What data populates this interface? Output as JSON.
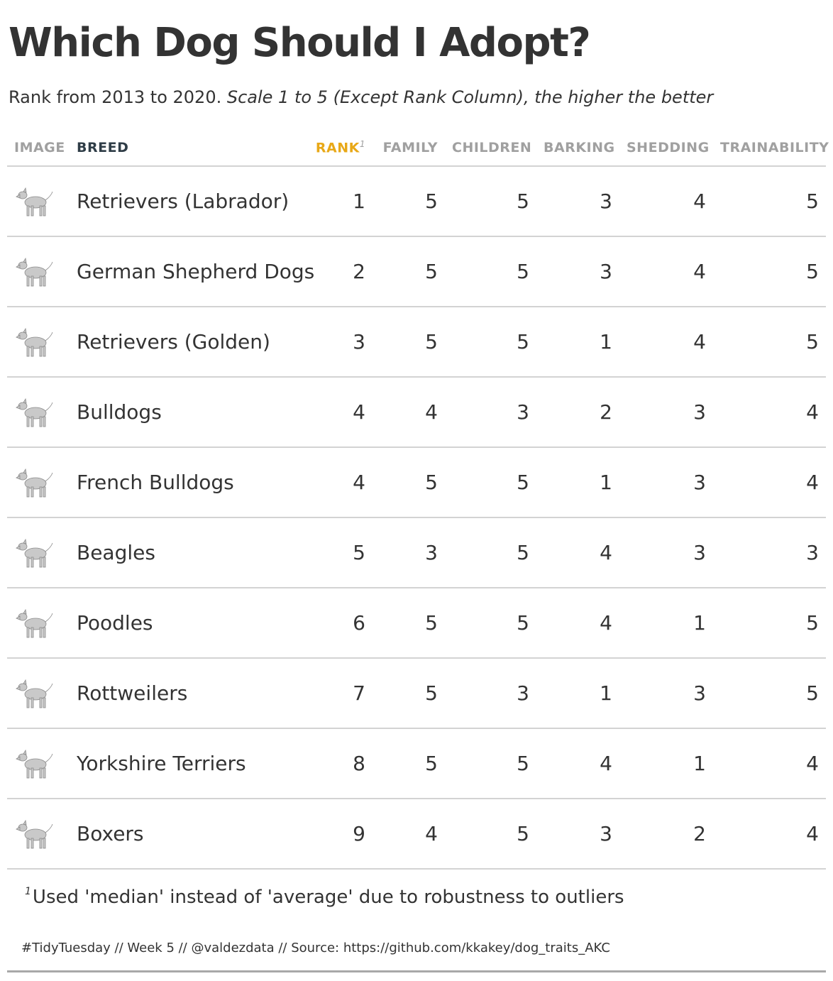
{
  "title": "Which Dog Should I Adopt?",
  "subtitle": {
    "plain": "Rank from 2013 to 2020.",
    "italic": "Scale 1 to 5 (Except Rank Column), the higher the better"
  },
  "colors": {
    "rank_header": "#e8a817",
    "breed_header": "#2f3d47",
    "muted_header": "#a0a0a0",
    "text": "#333333",
    "rule": "#d3d3d3"
  },
  "chart_data": {
    "type": "table",
    "columns": [
      "IMAGE",
      "BREED",
      "RANK",
      "FAMILY",
      "CHILDREN",
      "BARKING",
      "SHEDDING",
      "TRAINABILITY"
    ],
    "rank_footnote_marker": "1",
    "rows": [
      {
        "image": "labrador-retriever-icon",
        "breed": "Retrievers (Labrador)",
        "rank": 1,
        "family": 5,
        "children": 5,
        "barking": 3,
        "shedding": 4,
        "trainability": 5
      },
      {
        "image": "german-shepherd-icon",
        "breed": "German Shepherd Dogs",
        "rank": 2,
        "family": 5,
        "children": 5,
        "barking": 3,
        "shedding": 4,
        "trainability": 5
      },
      {
        "image": "golden-retriever-icon",
        "breed": "Retrievers (Golden)",
        "rank": 3,
        "family": 5,
        "children": 5,
        "barking": 1,
        "shedding": 4,
        "trainability": 5
      },
      {
        "image": "bulldog-icon",
        "breed": "Bulldogs",
        "rank": 4,
        "family": 4,
        "children": 3,
        "barking": 2,
        "shedding": 3,
        "trainability": 4
      },
      {
        "image": "french-bulldog-icon",
        "breed": "French Bulldogs",
        "rank": 4,
        "family": 5,
        "children": 5,
        "barking": 1,
        "shedding": 3,
        "trainability": 4
      },
      {
        "image": "beagle-icon",
        "breed": "Beagles",
        "rank": 5,
        "family": 3,
        "children": 5,
        "barking": 4,
        "shedding": 3,
        "trainability": 3
      },
      {
        "image": "poodle-icon",
        "breed": "Poodles",
        "rank": 6,
        "family": 5,
        "children": 5,
        "barking": 4,
        "shedding": 1,
        "trainability": 5
      },
      {
        "image": "rottweiler-icon",
        "breed": "Rottweilers",
        "rank": 7,
        "family": 5,
        "children": 3,
        "barking": 1,
        "shedding": 3,
        "trainability": 5
      },
      {
        "image": "yorkshire-terrier-icon",
        "breed": "Yorkshire Terriers",
        "rank": 8,
        "family": 5,
        "children": 5,
        "barking": 4,
        "shedding": 1,
        "trainability": 4
      },
      {
        "image": "boxer-icon",
        "breed": "Boxers",
        "rank": 9,
        "family": 4,
        "children": 5,
        "barking": 3,
        "shedding": 2,
        "trainability": 4
      }
    ]
  },
  "footnote": {
    "marker": "1",
    "text": "Used 'median' instead of 'average' due to robustness to outliers"
  },
  "source": "#TidyTuesday // Week 5 // @valdezdata // Source: https://github.com/kkakey/dog_traits_AKC"
}
